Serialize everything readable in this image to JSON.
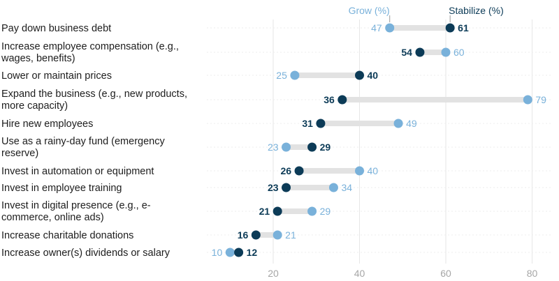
{
  "chart_data": {
    "type": "dumbbell",
    "title": "",
    "xlabel": "",
    "ylabel": "",
    "xlim": [
      10,
      82
    ],
    "xticks": [
      20,
      40,
      60,
      80
    ],
    "grid": "vertical",
    "legend_position": "top-right",
    "colors": {
      "grow": "#79b1da",
      "stabilize": "#0c3b57",
      "connector": "#e2e2e2",
      "grid": "#e6e6e6"
    },
    "series": [
      {
        "name": "Grow (%)",
        "key": "grow"
      },
      {
        "name": "Stabilize (%)",
        "key": "stabilize"
      }
    ],
    "categories": [
      {
        "label_lines": [
          "Pay down business debt"
        ],
        "grow": 47,
        "stabilize": 61
      },
      {
        "label_lines": [
          "Increase employee compensation (e.g.,",
          "wages, benefits)"
        ],
        "grow": 60,
        "stabilize": 54
      },
      {
        "label_lines": [
          "Lower or maintain prices"
        ],
        "grow": 25,
        "stabilize": 40
      },
      {
        "label_lines": [
          "Expand the business (e.g., new products,",
          "more capacity)"
        ],
        "grow": 79,
        "stabilize": 36
      },
      {
        "label_lines": [
          "Hire new employees"
        ],
        "grow": 49,
        "stabilize": 31
      },
      {
        "label_lines": [
          "Use as a rainy-day fund (emergency",
          "reserve)"
        ],
        "grow": 23,
        "stabilize": 29
      },
      {
        "label_lines": [
          "Invest in automation or equipment"
        ],
        "grow": 40,
        "stabilize": 26
      },
      {
        "label_lines": [
          "Invest in employee training"
        ],
        "grow": 34,
        "stabilize": 23
      },
      {
        "label_lines": [
          "Invest in digital presence (e.g., e-",
          "commerce, online ads)"
        ],
        "grow": 29,
        "stabilize": 21
      },
      {
        "label_lines": [
          "Increase charitable donations"
        ],
        "grow": 21,
        "stabilize": 16
      },
      {
        "label_lines": [
          "Increase owner(s) dividends or salary"
        ],
        "grow": 10,
        "stabilize": 12
      }
    ]
  }
}
